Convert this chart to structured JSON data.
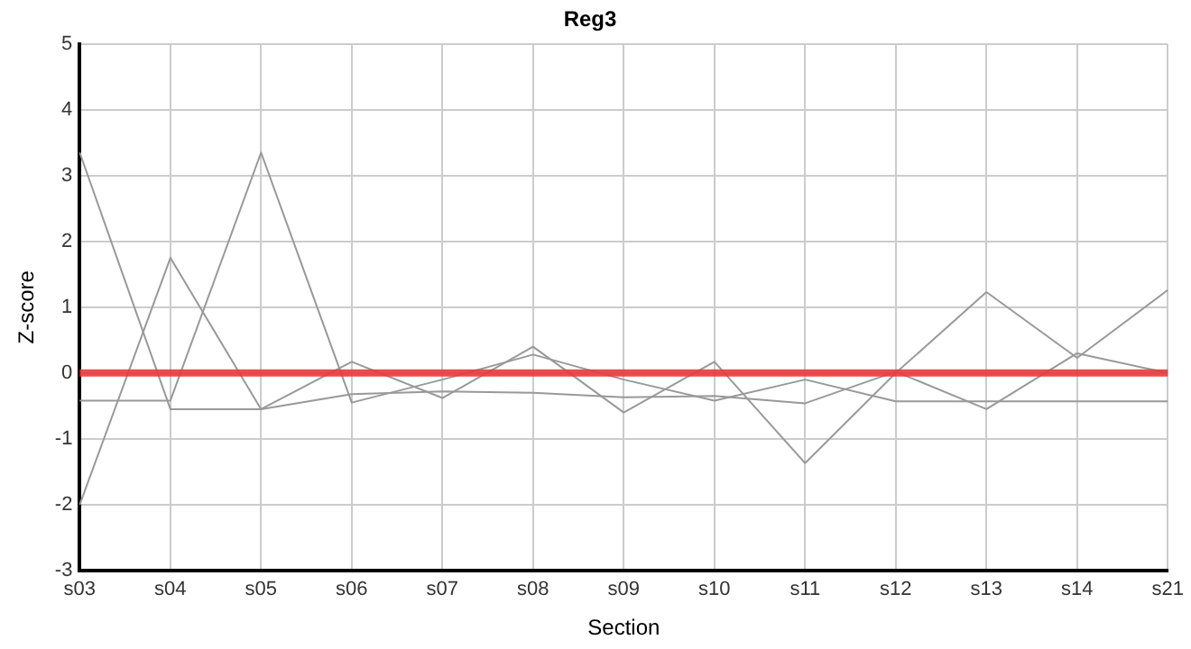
{
  "chart_data": {
    "type": "line",
    "title": "Reg3",
    "xlabel": "Section",
    "ylabel": "Z-score",
    "categories": [
      "s03",
      "s04",
      "s05",
      "s06",
      "s07",
      "s08",
      "s09",
      "s10",
      "s11",
      "s12",
      "s13",
      "s14",
      "s21"
    ],
    "series": [
      {
        "color": "#999999",
        "values": [
          3.35,
          -0.55,
          -0.55,
          -0.32,
          -0.28,
          -0.3,
          -0.37,
          -0.35,
          -0.46,
          0.02,
          -0.55,
          0.3,
          0
        ]
      },
      {
        "color": "#999999",
        "values": [
          -2,
          1.75,
          -0.55,
          0.17,
          -0.38,
          0.4,
          -0.6,
          0.17,
          -1.37,
          0,
          1.23,
          0.23,
          1.26
        ]
      },
      {
        "color": "#999999",
        "values": [
          -0.42,
          -0.42,
          3.35,
          -0.45,
          -0.1,
          0.28,
          -0.1,
          -0.42,
          -0.1,
          -0.43,
          -0.43,
          -0.43,
          -0.43
        ]
      }
    ],
    "ylim": [
      -3,
      5
    ],
    "yticks": [
      -3,
      -2,
      -1,
      0,
      1,
      2,
      3,
      4,
      5
    ],
    "ref_lines": [
      {
        "axis": "y",
        "value": 0,
        "color": "#e83a3a"
      }
    ],
    "grid": true,
    "legend": false,
    "marker": "none",
    "line_style": "solid"
  }
}
